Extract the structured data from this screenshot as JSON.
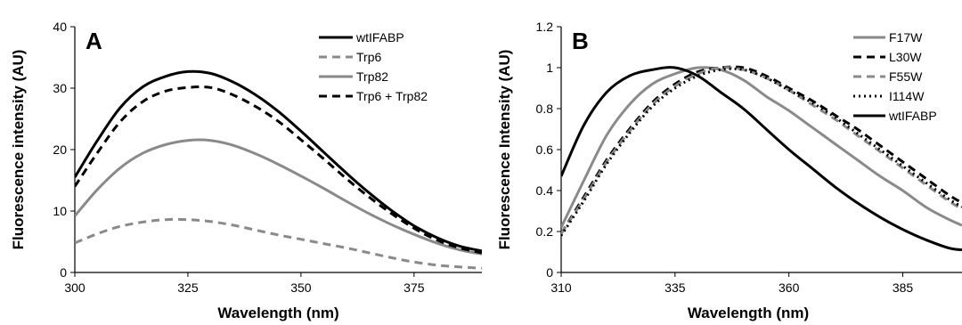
{
  "chart_data": [
    {
      "panel_label": "A",
      "type": "line",
      "xlabel": "Wavelength (nm)",
      "ylabel": "Fluorescence intensity (AU)",
      "xlim": [
        300,
        390
      ],
      "ylim": [
        0,
        40
      ],
      "xticks": [
        300,
        325,
        350,
        375
      ],
      "yticks": [
        0,
        10,
        20,
        30,
        40
      ],
      "grid": false,
      "legend_position": "top-right",
      "x": [
        300,
        305,
        310,
        315,
        320,
        325,
        330,
        335,
        340,
        345,
        350,
        355,
        360,
        365,
        370,
        375,
        380,
        385,
        390
      ],
      "series": [
        {
          "name": "wtIFABP",
          "color": "#000000",
          "dash": "solid",
          "values": [
            15.5,
            21.5,
            26.8,
            30.2,
            31.9,
            32.7,
            32.4,
            31.0,
            28.9,
            26.2,
            23.0,
            19.6,
            16.2,
            13.0,
            10.1,
            7.6,
            5.7,
            4.3,
            3.5
          ]
        },
        {
          "name": "Trp6",
          "color": "#8a8a8a",
          "dash": "dashed",
          "values": [
            4.8,
            6.3,
            7.5,
            8.2,
            8.6,
            8.6,
            8.3,
            7.7,
            6.9,
            6.1,
            5.4,
            4.7,
            4.0,
            3.2,
            2.4,
            1.7,
            1.2,
            0.9,
            0.7
          ]
        },
        {
          "name": "Trp82",
          "color": "#8a8a8a",
          "dash": "solid",
          "values": [
            9.2,
            13.5,
            17.0,
            19.4,
            20.8,
            21.5,
            21.5,
            20.7,
            19.3,
            17.6,
            15.7,
            13.7,
            11.6,
            9.6,
            7.8,
            6.2,
            4.8,
            3.7,
            3.0
          ]
        },
        {
          "name": "Trp6 + Trp82",
          "color": "#000000",
          "dash": "dashed",
          "values": [
            14.0,
            19.5,
            24.5,
            27.8,
            29.5,
            30.1,
            30.1,
            28.9,
            27.0,
            24.6,
            21.6,
            18.5,
            15.3,
            12.3,
            9.6,
            7.2,
            5.3,
            4.0,
            3.2
          ]
        }
      ]
    },
    {
      "panel_label": "B",
      "type": "line",
      "xlabel": "Wavelength (nm)",
      "ylabel": "Fluorescence Intensity (AU)",
      "xlim": [
        310,
        398
      ],
      "ylim": [
        0,
        1.2
      ],
      "xticks": [
        310,
        335,
        360,
        385
      ],
      "yticks": [
        0,
        0.2,
        0.4,
        0.6,
        0.8,
        1,
        1.2
      ],
      "ytick_labels": [
        "0",
        "0.2",
        "0.4",
        "0.6",
        "0.8",
        "1",
        "1.2"
      ],
      "grid": false,
      "legend_position": "top-right",
      "x": [
        310,
        315,
        320,
        325,
        330,
        335,
        340,
        345,
        350,
        355,
        360,
        365,
        370,
        375,
        380,
        385,
        390,
        395,
        398
      ],
      "series": [
        {
          "name": "F17W",
          "color": "#8a8a8a",
          "dash": "solid",
          "values": [
            0.22,
            0.45,
            0.67,
            0.82,
            0.92,
            0.97,
            1.0,
            0.99,
            0.94,
            0.86,
            0.79,
            0.71,
            0.63,
            0.55,
            0.47,
            0.4,
            0.32,
            0.26,
            0.23
          ]
        },
        {
          "name": "L30W",
          "color": "#000000",
          "dash": "dashed",
          "values": [
            0.19,
            0.37,
            0.55,
            0.7,
            0.83,
            0.92,
            0.98,
            1.0,
            1.0,
            0.96,
            0.9,
            0.84,
            0.77,
            0.7,
            0.62,
            0.54,
            0.46,
            0.38,
            0.34
          ]
        },
        {
          "name": "F55W",
          "color": "#8a8a8a",
          "dash": "dashed",
          "values": [
            0.19,
            0.36,
            0.54,
            0.69,
            0.82,
            0.91,
            0.97,
            1.0,
            0.99,
            0.95,
            0.89,
            0.82,
            0.75,
            0.67,
            0.59,
            0.51,
            0.43,
            0.35,
            0.31
          ]
        },
        {
          "name": "I114W",
          "color": "#000000",
          "dash": "dotted",
          "values": [
            0.18,
            0.35,
            0.53,
            0.68,
            0.81,
            0.9,
            0.96,
            0.99,
            0.99,
            0.95,
            0.89,
            0.83,
            0.76,
            0.68,
            0.6,
            0.52,
            0.44,
            0.36,
            0.32
          ]
        },
        {
          "name": "wtIFABP",
          "color": "#000000",
          "dash": "solid",
          "values": [
            0.47,
            0.72,
            0.88,
            0.96,
            0.99,
            1.0,
            0.96,
            0.88,
            0.8,
            0.7,
            0.6,
            0.51,
            0.42,
            0.34,
            0.27,
            0.21,
            0.16,
            0.12,
            0.11
          ]
        }
      ]
    }
  ]
}
